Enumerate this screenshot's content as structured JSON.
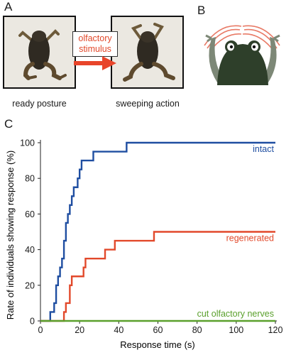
{
  "panels": {
    "a_label": "A",
    "b_label": "B",
    "c_label": "C"
  },
  "panel_a": {
    "left_caption": "ready posture",
    "right_caption": "sweeping action",
    "stimulus_line1": "olfactory",
    "stimulus_line2": "stimulus"
  },
  "colors": {
    "intact": "#1f4ea1",
    "regenerated": "#e2492b",
    "cut": "#5aa02c",
    "arrow": "#e8452a",
    "frog_body": "#2e3f2a",
    "frog_limb": "#7d8877"
  },
  "chart_data": {
    "type": "line",
    "step": true,
    "xlabel": "Response time (s)",
    "ylabel": "Rate of individuals showing response (%)",
    "xlim": [
      0,
      120
    ],
    "ylim": [
      0,
      100
    ],
    "xticks": [
      0,
      20,
      40,
      60,
      80,
      100,
      120
    ],
    "yticks": [
      0,
      20,
      40,
      60,
      80,
      100
    ],
    "grid": false,
    "series": [
      {
        "name": "intact",
        "color": "#1f4ea1",
        "x": [
          0,
          5,
          7,
          8,
          9,
          10,
          11,
          12,
          13,
          14,
          15,
          16,
          17,
          19,
          20,
          21,
          22,
          24,
          27,
          30,
          44,
          120
        ],
        "y": [
          0,
          5,
          10,
          20,
          25,
          30,
          35,
          45,
          55,
          60,
          65,
          70,
          75,
          80,
          85,
          90,
          90,
          90,
          95,
          95,
          100,
          100
        ]
      },
      {
        "name": "regenerated",
        "color": "#e2492b",
        "x": [
          0,
          11,
          12,
          13,
          15,
          16,
          17,
          20,
          22,
          23,
          27,
          30,
          33,
          38,
          58,
          120
        ],
        "y": [
          0,
          0,
          5,
          10,
          20,
          25,
          25,
          25,
          30,
          35,
          35,
          35,
          40,
          45,
          50,
          50
        ]
      },
      {
        "name": "cut olfactory nerves",
        "color": "#5aa02c",
        "x": [
          0,
          120
        ],
        "y": [
          0,
          0
        ]
      }
    ]
  }
}
